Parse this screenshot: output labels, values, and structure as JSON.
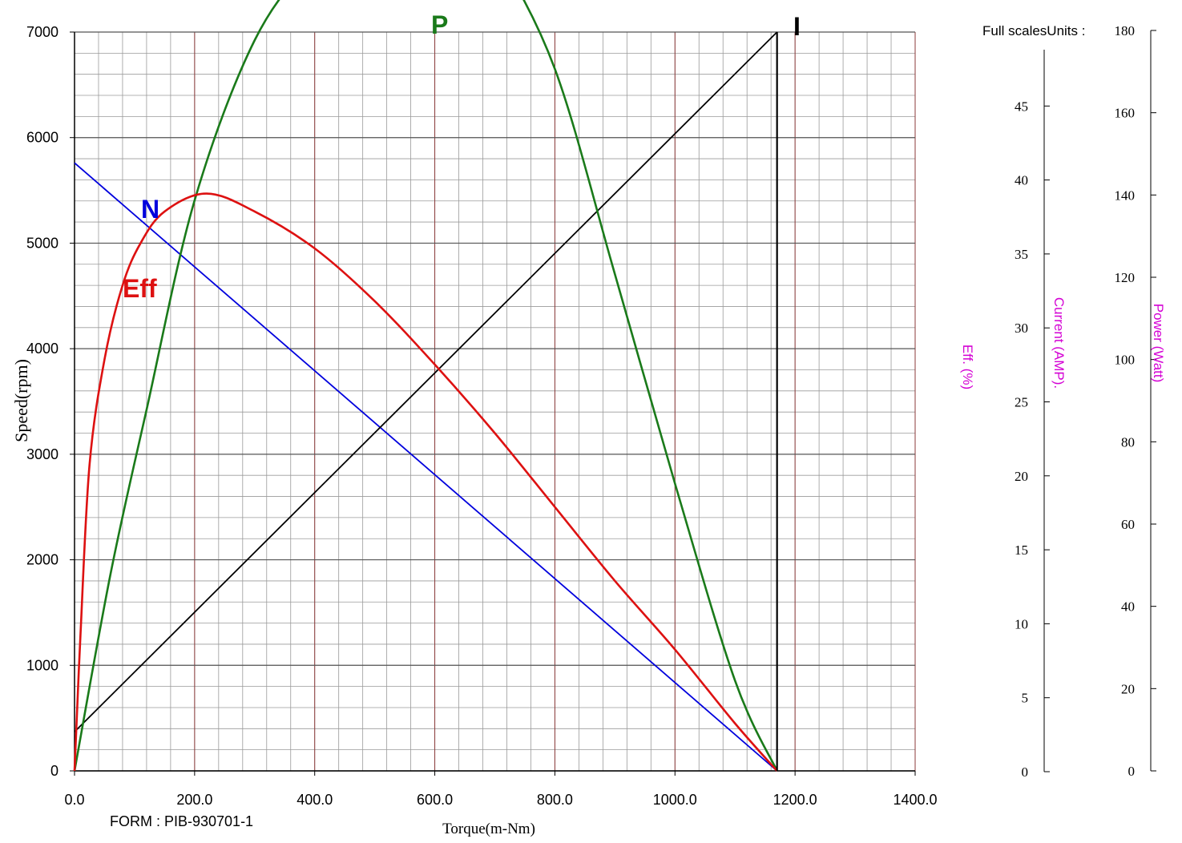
{
  "chart_data": {
    "type": "line",
    "xlabel": "Torque(m-Nm)",
    "ylabel": "Speed(rpm)",
    "xlim": [
      0,
      1400
    ],
    "ylim": [
      0,
      7000
    ],
    "x_ticks": [
      0,
      200,
      400,
      600,
      800,
      1000,
      1200,
      1400
    ],
    "x_tick_labels": [
      "0.0",
      "200.0",
      "400.0",
      "600.0",
      "800.0",
      "1000.0",
      "1200.0",
      "1400.0"
    ],
    "y_ticks": [
      0,
      1000,
      2000,
      3000,
      4000,
      5000,
      6000,
      7000
    ],
    "y_tick_labels": [
      "0",
      "1000",
      "2000",
      "3000",
      "4000",
      "5000",
      "6000",
      "7000"
    ],
    "grid": true,
    "header_label": "Full scalesUnits :",
    "form_label": "FORM : PIB-930701-1",
    "right_axes": [
      {
        "title": "Eff. (%)",
        "color": "#d400d4",
        "ticks": [],
        "tick_labels": []
      },
      {
        "title": "Current (AMP).",
        "color": "#d400d4",
        "ylim": [
          0,
          50
        ],
        "ticks": [
          0,
          5,
          10,
          15,
          20,
          25,
          30,
          35,
          40,
          45
        ],
        "tick_labels": [
          "0",
          "5",
          "10",
          "15",
          "20",
          "25",
          "30",
          "35",
          "40",
          "45"
        ]
      },
      {
        "title": "Power (Watt)",
        "color": "#d400d4",
        "ylim": [
          0,
          180
        ],
        "ticks": [
          0,
          20,
          40,
          60,
          80,
          100,
          120,
          140,
          160,
          180
        ],
        "tick_labels": [
          "0",
          "20",
          "40",
          "60",
          "80",
          "100",
          "120",
          "140",
          "160",
          "180"
        ]
      }
    ],
    "series": [
      {
        "name": "N",
        "axis": "speed",
        "color": "#0000dd",
        "x": [
          0,
          1170
        ],
        "y": [
          5760,
          0
        ]
      },
      {
        "name": "I",
        "axis": "speed",
        "color": "#000000",
        "x": [
          0,
          1170
        ],
        "y": [
          370,
          7000
        ]
      },
      {
        "name": "P",
        "axis": "power",
        "color": "#1a7a1a",
        "x": [
          0,
          60,
          120,
          200,
          300,
          400,
          500,
          585,
          650,
          700,
          800,
          900,
          1000,
          1100,
          1170
        ],
        "y": [
          0,
          48,
          88,
          139,
          178,
          198,
          210,
          211,
          207,
          200,
          171,
          121,
          70,
          22,
          0
        ]
      },
      {
        "name": "Eff",
        "axis": "speed",
        "color": "#dd1111",
        "x": [
          0,
          10,
          25,
          50,
          80,
          110,
          150,
          220,
          300,
          400,
          500,
          600,
          700,
          800,
          900,
          1000,
          1100,
          1170
        ],
        "y": [
          0,
          1300,
          2900,
          3900,
          4600,
          5000,
          5300,
          5470,
          5300,
          4950,
          4450,
          3850,
          3200,
          2500,
          1800,
          1150,
          450,
          0
        ]
      }
    ],
    "series_labels": [
      {
        "text": "N",
        "color": "#0000dd"
      },
      {
        "text": "Eff",
        "color": "#dd1111"
      },
      {
        "text": "P",
        "color": "#1a7a1a"
      },
      {
        "text": "I",
        "color": "#000000"
      }
    ]
  }
}
